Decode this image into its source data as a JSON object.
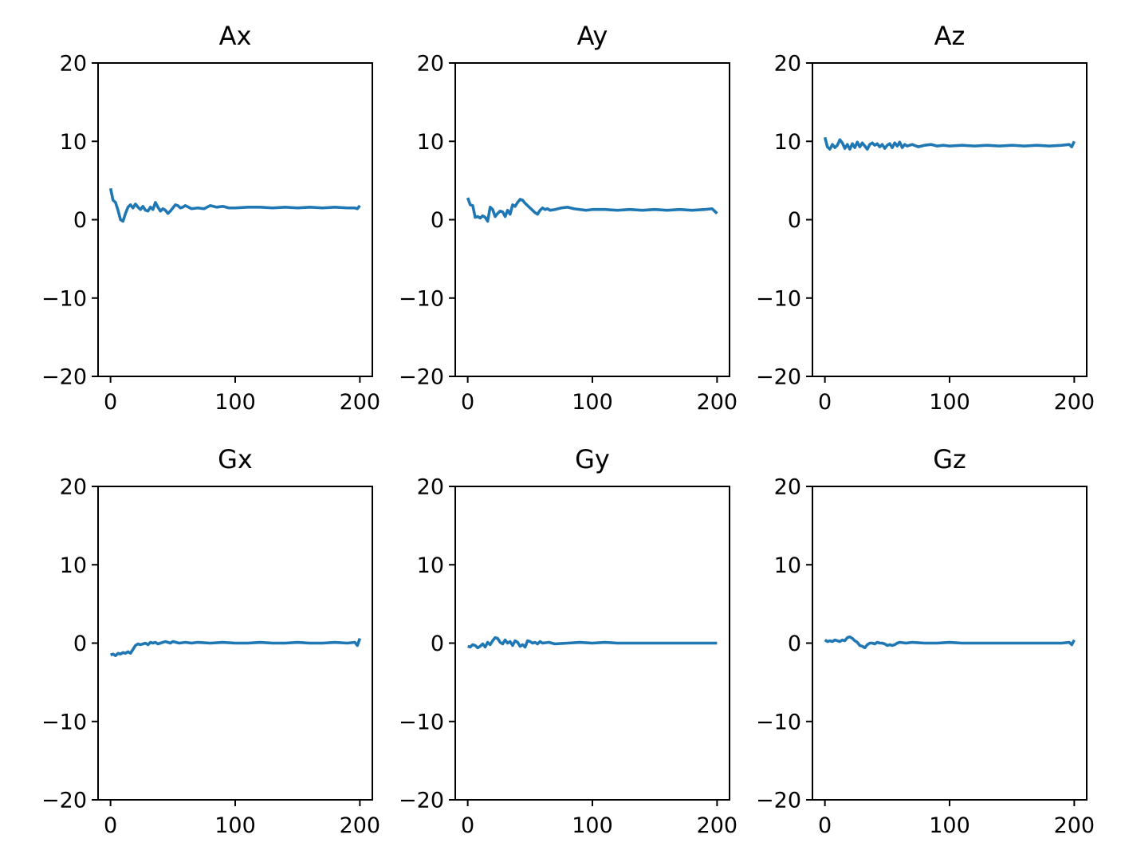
{
  "chart_data": [
    {
      "type": "line",
      "title": "Ax",
      "xlim": [
        -10,
        210
      ],
      "ylim": [
        -20,
        20
      ],
      "xticks": [
        0,
        100,
        200
      ],
      "yticks": [
        -20,
        -10,
        0,
        10,
        20
      ],
      "xtick_labels": [
        "0",
        "100",
        "200"
      ],
      "ytick_labels": [
        "−20",
        "−10",
        "0",
        "10",
        "20"
      ],
      "color": "#1f77b4",
      "series": [
        {
          "x": [
            0,
            2,
            4,
            6,
            8,
            10,
            12,
            14,
            16,
            18,
            20,
            22,
            24,
            26,
            28,
            30,
            32,
            34,
            36,
            38,
            40,
            42,
            44,
            46,
            48,
            50,
            52,
            54,
            56,
            58,
            60,
            65,
            70,
            75,
            80,
            85,
            90,
            95,
            100,
            110,
            120,
            130,
            140,
            150,
            160,
            170,
            180,
            190,
            196,
            198,
            200
          ],
          "y": [
            4.0,
            2.5,
            2.2,
            1.2,
            0.0,
            -0.2,
            0.8,
            1.6,
            1.9,
            1.5,
            2.0,
            1.6,
            1.3,
            1.7,
            1.2,
            1.1,
            1.6,
            1.3,
            2.2,
            1.6,
            1.1,
            1.4,
            1.2,
            0.8,
            1.1,
            1.5,
            1.9,
            1.8,
            1.5,
            1.6,
            1.8,
            1.4,
            1.5,
            1.4,
            1.8,
            1.6,
            1.7,
            1.5,
            1.5,
            1.6,
            1.6,
            1.5,
            1.6,
            1.5,
            1.6,
            1.5,
            1.6,
            1.5,
            1.5,
            1.4,
            1.8
          ]
        }
      ]
    },
    {
      "type": "line",
      "title": "Ay",
      "xlim": [
        -10,
        210
      ],
      "ylim": [
        -20,
        20
      ],
      "xticks": [
        0,
        100,
        200
      ],
      "yticks": [
        -20,
        -10,
        0,
        10,
        20
      ],
      "xtick_labels": [
        "0",
        "100",
        "200"
      ],
      "ytick_labels": [
        "−20",
        "−10",
        "0",
        "10",
        "20"
      ],
      "color": "#1f77b4",
      "series": [
        {
          "x": [
            0,
            2,
            4,
            6,
            8,
            10,
            12,
            14,
            16,
            18,
            20,
            22,
            24,
            26,
            28,
            30,
            32,
            34,
            36,
            38,
            40,
            42,
            44,
            46,
            48,
            50,
            52,
            54,
            56,
            58,
            60,
            62,
            64,
            66,
            70,
            75,
            80,
            85,
            90,
            95,
            100,
            110,
            120,
            130,
            140,
            150,
            160,
            170,
            180,
            190,
            196,
            198,
            200
          ],
          "y": [
            2.8,
            1.9,
            1.8,
            0.3,
            0.4,
            0.2,
            0.5,
            0.3,
            -0.2,
            1.6,
            1.3,
            0.4,
            0.8,
            1.1,
            1.0,
            0.4,
            1.2,
            0.7,
            1.9,
            1.7,
            2.2,
            2.6,
            2.5,
            2.1,
            1.8,
            1.5,
            1.2,
            0.9,
            0.7,
            1.2,
            1.5,
            1.3,
            1.4,
            1.2,
            1.3,
            1.5,
            1.6,
            1.4,
            1.3,
            1.2,
            1.3,
            1.3,
            1.2,
            1.3,
            1.2,
            1.3,
            1.2,
            1.3,
            1.2,
            1.3,
            1.4,
            1.1,
            0.8
          ]
        }
      ]
    },
    {
      "type": "line",
      "title": "Az",
      "xlim": [
        -10,
        210
      ],
      "ylim": [
        -20,
        20
      ],
      "xticks": [
        0,
        100,
        200
      ],
      "yticks": [
        -20,
        -10,
        0,
        10,
        20
      ],
      "xtick_labels": [
        "0",
        "100",
        "200"
      ],
      "ytick_labels": [
        "−20",
        "−10",
        "0",
        "10",
        "20"
      ],
      "color": "#1f77b4",
      "series": [
        {
          "x": [
            0,
            2,
            4,
            6,
            8,
            10,
            12,
            14,
            16,
            18,
            20,
            22,
            24,
            26,
            28,
            30,
            32,
            34,
            36,
            38,
            40,
            42,
            44,
            46,
            48,
            50,
            52,
            54,
            56,
            58,
            60,
            62,
            64,
            66,
            70,
            75,
            80,
            85,
            90,
            95,
            100,
            110,
            120,
            130,
            140,
            150,
            160,
            170,
            180,
            190,
            196,
            198,
            200
          ],
          "y": [
            10.5,
            9.3,
            9.0,
            9.6,
            9.2,
            9.5,
            10.2,
            9.8,
            9.1,
            9.6,
            9.0,
            9.7,
            9.2,
            9.9,
            9.3,
            9.8,
            9.4,
            9.0,
            9.6,
            9.8,
            9.5,
            9.7,
            9.3,
            9.6,
            9.1,
            9.5,
            9.7,
            9.2,
            9.8,
            9.4,
            9.9,
            9.2,
            9.6,
            9.4,
            9.6,
            9.3,
            9.5,
            9.6,
            9.4,
            9.5,
            9.4,
            9.5,
            9.4,
            9.5,
            9.4,
            9.5,
            9.4,
            9.5,
            9.4,
            9.5,
            9.6,
            9.3,
            10.0
          ]
        }
      ]
    },
    {
      "type": "line",
      "title": "Gx",
      "xlim": [
        -10,
        210
      ],
      "ylim": [
        -20,
        20
      ],
      "xticks": [
        0,
        100,
        200
      ],
      "yticks": [
        -20,
        -10,
        0,
        10,
        20
      ],
      "xtick_labels": [
        "0",
        "100",
        "200"
      ],
      "ytick_labels": [
        "−20",
        "−10",
        "0",
        "10",
        "20"
      ],
      "color": "#1f77b4",
      "series": [
        {
          "x": [
            0,
            2,
            4,
            6,
            8,
            10,
            12,
            14,
            16,
            18,
            20,
            22,
            24,
            26,
            28,
            30,
            32,
            34,
            36,
            38,
            40,
            42,
            44,
            46,
            48,
            50,
            55,
            60,
            65,
            70,
            80,
            90,
            100,
            110,
            120,
            130,
            140,
            150,
            160,
            170,
            180,
            190,
            196,
            198,
            200
          ],
          "y": [
            -1.5,
            -1.4,
            -1.6,
            -1.3,
            -1.4,
            -1.2,
            -1.3,
            -1.1,
            -1.3,
            -0.8,
            -0.3,
            -0.1,
            -0.2,
            -0.1,
            0.0,
            -0.2,
            0.1,
            0.0,
            0.1,
            -0.1,
            0.0,
            0.1,
            0.2,
            0.1,
            0.0,
            0.2,
            0.0,
            0.1,
            0.0,
            0.1,
            0.0,
            0.1,
            0.0,
            0.0,
            0.1,
            0.0,
            0.0,
            0.1,
            0.0,
            0.0,
            0.1,
            0.0,
            0.1,
            -0.3,
            0.6
          ]
        }
      ]
    },
    {
      "type": "line",
      "title": "Gy",
      "xlim": [
        -10,
        210
      ],
      "ylim": [
        -20,
        20
      ],
      "xticks": [
        0,
        100,
        200
      ],
      "yticks": [
        -20,
        -10,
        0,
        10,
        20
      ],
      "xtick_labels": [
        "0",
        "100",
        "200"
      ],
      "ytick_labels": [
        "−20",
        "−10",
        "0",
        "10",
        "20"
      ],
      "color": "#1f77b4",
      "series": [
        {
          "x": [
            0,
            2,
            4,
            6,
            8,
            10,
            12,
            14,
            16,
            18,
            20,
            22,
            24,
            26,
            28,
            30,
            32,
            34,
            36,
            38,
            40,
            42,
            44,
            46,
            48,
            50,
            52,
            54,
            56,
            58,
            60,
            65,
            70,
            80,
            90,
            100,
            110,
            120,
            130,
            140,
            150,
            160,
            170,
            180,
            190,
            200
          ],
          "y": [
            -0.4,
            -0.5,
            -0.2,
            -0.3,
            -0.6,
            -0.4,
            -0.1,
            -0.5,
            0.1,
            -0.2,
            0.3,
            0.7,
            0.6,
            0.1,
            -0.1,
            0.4,
            0.0,
            0.2,
            -0.3,
            0.3,
            0.1,
            -0.4,
            -0.2,
            -0.5,
            0.3,
            0.2,
            0.0,
            0.1,
            -0.1,
            0.2,
            0.0,
            0.1,
            -0.1,
            0.0,
            0.1,
            0.0,
            0.1,
            0.0,
            0.0,
            0.0,
            0.0,
            0.0,
            0.0,
            0.0,
            0.0,
            0.0
          ]
        }
      ]
    },
    {
      "type": "line",
      "title": "Gz",
      "xlim": [
        -10,
        210
      ],
      "ylim": [
        -20,
        20
      ],
      "xticks": [
        0,
        100,
        200
      ],
      "yticks": [
        -20,
        -10,
        0,
        10,
        20
      ],
      "xtick_labels": [
        "0",
        "100",
        "200"
      ],
      "ytick_labels": [
        "−20",
        "−10",
        "0",
        "10",
        "20"
      ],
      "color": "#1f77b4",
      "series": [
        {
          "x": [
            0,
            2,
            4,
            6,
            8,
            10,
            12,
            14,
            16,
            18,
            20,
            22,
            24,
            26,
            28,
            30,
            32,
            34,
            36,
            38,
            40,
            42,
            44,
            46,
            48,
            50,
            52,
            54,
            56,
            58,
            60,
            65,
            70,
            80,
            90,
            100,
            110,
            120,
            130,
            140,
            150,
            160,
            170,
            180,
            190,
            196,
            198,
            200
          ],
          "y": [
            0.4,
            0.2,
            0.3,
            0.2,
            0.4,
            0.3,
            0.2,
            0.4,
            0.3,
            0.7,
            0.8,
            0.6,
            0.3,
            0.1,
            -0.3,
            -0.4,
            -0.6,
            -0.2,
            0.0,
            0.0,
            -0.1,
            0.1,
            0.0,
            0.0,
            -0.1,
            -0.3,
            -0.2,
            -0.3,
            -0.2,
            0.0,
            0.1,
            0.0,
            0.1,
            0.0,
            0.0,
            0.1,
            0.0,
            0.0,
            0.0,
            0.0,
            0.0,
            0.0,
            0.0,
            0.0,
            0.0,
            0.1,
            -0.2,
            0.4
          ]
        }
      ]
    }
  ]
}
